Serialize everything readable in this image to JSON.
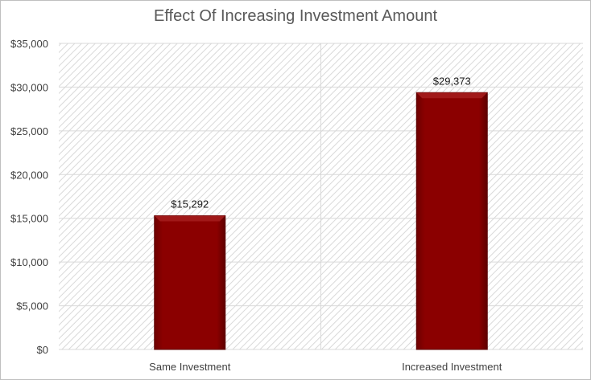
{
  "chart_data": {
    "type": "bar",
    "title": "Effect Of Increasing Investment Amount",
    "categories": [
      "Same Investment",
      "Increased Investment"
    ],
    "values": [
      15292,
      29373
    ],
    "data_labels": [
      "$15,292",
      "$29,373"
    ],
    "ylim": [
      0,
      35000
    ],
    "yticks": [
      0,
      5000,
      10000,
      15000,
      20000,
      25000,
      30000,
      35000
    ],
    "ytick_labels": [
      "$0",
      "$5,000",
      "$10,000",
      "$15,000",
      "$20,000",
      "$25,000",
      "$30,000",
      "$35,000"
    ],
    "xlabel": "",
    "ylabel": "",
    "legend": "none",
    "grid": true,
    "bar_color": "#8b0000"
  }
}
